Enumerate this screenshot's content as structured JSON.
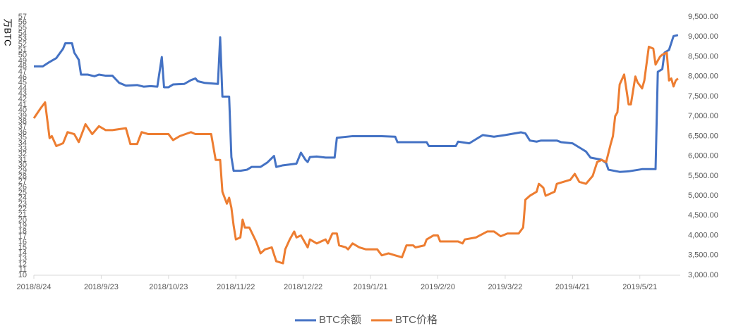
{
  "chart_data": {
    "type": "line",
    "y_label": "万BTC",
    "xlim": [
      "2018/8/24",
      "2019/6/8"
    ],
    "xticks": [
      "2018/8/24",
      "2018/9/23",
      "2018/10/23",
      "2018/11/22",
      "2018/12/22",
      "2019/1/21",
      "2019/2/20",
      "2019/3/22",
      "2019/4/21",
      "2019/5/21"
    ],
    "ylim": [
      10,
      57
    ],
    "yticks": [
      10,
      11,
      12,
      13,
      14,
      15,
      16,
      17,
      18,
      19,
      20,
      21,
      22,
      23,
      24,
      25,
      26,
      27,
      28,
      29,
      30,
      31,
      32,
      33,
      34,
      35,
      36,
      37,
      38,
      39,
      40,
      41,
      42,
      43,
      44,
      45,
      46,
      47,
      48,
      49,
      50,
      51,
      52,
      53,
      54,
      55,
      56,
      57
    ],
    "y2lim": [
      3000,
      9500
    ],
    "y2ticks": [
      {
        "value": 3000,
        "label": "3,000.00"
      },
      {
        "value": 3500,
        "label": "3,500.00"
      },
      {
        "value": 4000,
        "label": "4,000.00"
      },
      {
        "value": 4500,
        "label": "4,500.00"
      },
      {
        "value": 5000,
        "label": "5,000.00"
      },
      {
        "value": 5500,
        "label": "5,500.00"
      },
      {
        "value": 6000,
        "label": "6,000.00"
      },
      {
        "value": 6500,
        "label": "6,500.00"
      },
      {
        "value": 7000,
        "label": "7,000.00"
      },
      {
        "value": 7500,
        "label": "7,500.00"
      },
      {
        "value": 8000,
        "label": "8,000.00"
      },
      {
        "value": 8500,
        "label": "8,500.00"
      },
      {
        "value": 9000,
        "label": "9,000.00"
      },
      {
        "value": 9500,
        "label": "9,500.00"
      }
    ],
    "legend": "bottom",
    "series": [
      {
        "name": "BTC余额",
        "color": "#4472c4",
        "axis": "y",
        "x": [
          "2018/8/24",
          "2018/8/28",
          "2018/8/31",
          "2018/9/3",
          "2018/9/6",
          "2018/9/7",
          "2018/9/10",
          "2018/9/11",
          "2018/9/13",
          "2018/9/14",
          "2018/9/17",
          "2018/9/20",
          "2018/9/22",
          "2018/9/25",
          "2018/9/28",
          "2018/10/1",
          "2018/10/4",
          "2018/10/9",
          "2018/10/12",
          "2018/10/15",
          "2018/10/18",
          "2018/10/20",
          "2018/10/21",
          "2018/10/23",
          "2018/10/25",
          "2018/10/30",
          "2018/11/2",
          "2018/11/4",
          "2018/11/5",
          "2018/11/8",
          "2018/11/11",
          "2018/11/14",
          "2018/11/15",
          "2018/11/16",
          "2018/11/19",
          "2018/11/20",
          "2018/11/21",
          "2018/11/24",
          "2018/11/27",
          "2018/11/29",
          "2018/12/3",
          "2018/12/6",
          "2018/12/9",
          "2018/12/10",
          "2018/12/13",
          "2018/12/19",
          "2018/12/21",
          "2018/12/23",
          "2018/12/24",
          "2018/12/25",
          "2018/12/28",
          "2019/1/1",
          "2019/1/5",
          "2019/1/6",
          "2019/1/13",
          "2019/1/26",
          "2019/2/1",
          "2019/2/2",
          "2019/2/15",
          "2019/2/16",
          "2019/2/28",
          "2019/3/1",
          "2019/3/6",
          "2019/3/12",
          "2019/3/17",
          "2019/3/22",
          "2019/3/29",
          "2019/3/31",
          "2019/4/2",
          "2019/4/5",
          "2019/4/7",
          "2019/4/14",
          "2019/4/16",
          "2019/4/21",
          "2019/4/25",
          "2019/4/27",
          "2019/4/29",
          "2019/5/4",
          "2019/5/6",
          "2019/5/7",
          "2019/5/12",
          "2019/5/16",
          "2019/5/22",
          "2019/5/28",
          "2019/5/29",
          "2019/5/31",
          "2019/6/1",
          "2019/6/3",
          "2019/6/5",
          "2019/6/7"
        ],
        "values": [
          48,
          48,
          48.8,
          49.5,
          51.2,
          52.2,
          52.2,
          50.5,
          49.2,
          46.5,
          46.5,
          46.2,
          46.5,
          46.3,
          46.3,
          45,
          44.5,
          44.6,
          44.3,
          44.4,
          44.3,
          49.7,
          44.2,
          44.2,
          44.7,
          44.8,
          45.5,
          45.8,
          45.3,
          45,
          44.9,
          44.8,
          53.3,
          42.5,
          42.5,
          31.5,
          29,
          29,
          29.2,
          29.7,
          29.7,
          30.5,
          31.7,
          29.7,
          30,
          30.3,
          32.3,
          31,
          30.6,
          31.5,
          31.6,
          31.4,
          31.4,
          35,
          35.3,
          35.3,
          35.2,
          34.2,
          34.2,
          33.5,
          33.5,
          34.3,
          34,
          35.5,
          35.2,
          35.5,
          36,
          35.8,
          34.5,
          34.3,
          34.5,
          34.5,
          34.2,
          34,
          33,
          32.5,
          31.4,
          31,
          30.4,
          29.2,
          28.8,
          28.9,
          29.3,
          29.3,
          47,
          47.5,
          50.5,
          51,
          53.5,
          53.7
        ]
      },
      {
        "name": "BTC价格",
        "color": "#ed7d31",
        "axis": "y2",
        "x": [
          "2018/8/24",
          "2018/8/27",
          "2018/8/29",
          "2018/8/31",
          "2018/9/1",
          "2018/9/3",
          "2018/9/6",
          "2018/9/8",
          "2018/9/11",
          "2018/9/13",
          "2018/9/16",
          "2018/9/19",
          "2018/9/22",
          "2018/9/25",
          "2018/9/28",
          "2018/10/4",
          "2018/10/6",
          "2018/10/9",
          "2018/10/11",
          "2018/10/14",
          "2018/10/17",
          "2018/10/23",
          "2018/10/25",
          "2018/10/28",
          "2018/11/2",
          "2018/11/4",
          "2018/11/11",
          "2018/11/13",
          "2018/11/15",
          "2018/11/16",
          "2018/11/18",
          "2018/11/19",
          "2018/11/20",
          "2018/11/21",
          "2018/11/22",
          "2018/11/24",
          "2018/11/25",
          "2018/11/26",
          "2018/11/28",
          "2018/12/1",
          "2018/12/3",
          "2018/12/5",
          "2018/12/8",
          "2018/12/10",
          "2018/12/13",
          "2018/12/14",
          "2018/12/16",
          "2018/12/18",
          "2018/12/19",
          "2018/12/21",
          "2018/12/24",
          "2018/12/25",
          "2018/12/28",
          "2019/1/1",
          "2019/1/2",
          "2019/1/4",
          "2019/1/6",
          "2019/1/7",
          "2019/1/10",
          "2019/1/11",
          "2019/1/13",
          "2019/1/16",
          "2019/1/19",
          "2019/1/24",
          "2019/1/26",
          "2019/1/29",
          "2019/2/1",
          "2019/2/4",
          "2019/2/6",
          "2019/2/9",
          "2019/2/10",
          "2019/2/14",
          "2019/2/15",
          "2019/2/18",
          "2019/2/20",
          "2019/2/21",
          "2019/2/26",
          "2019/3/1",
          "2019/3/3",
          "2019/3/4",
          "2019/3/9",
          "2019/3/14",
          "2019/3/17",
          "2019/3/20",
          "2019/3/23",
          "2019/3/28",
          "2019/3/30",
          "2019/3/31",
          "2019/4/2",
          "2019/4/5",
          "2019/4/6",
          "2019/4/8",
          "2019/4/9",
          "2019/4/13",
          "2019/4/14",
          "2019/4/17",
          "2019/4/20",
          "2019/4/22",
          "2019/4/24",
          "2019/4/27",
          "2019/4/30",
          "2019/5/2",
          "2019/5/4",
          "2019/5/6",
          "2019/5/8",
          "2019/5/9",
          "2019/5/10",
          "2019/5/11",
          "2019/5/12",
          "2019/5/14",
          "2019/5/16",
          "2019/5/17",
          "2019/5/19",
          "2019/5/20",
          "2019/5/22",
          "2019/5/23",
          "2019/5/25",
          "2019/5/27",
          "2019/5/28",
          "2019/5/30",
          "2019/5/31",
          "2019/6/2",
          "2019/6/3",
          "2019/6/4",
          "2019/6/5",
          "2019/6/6",
          "2019/6/7"
        ],
        "values": [
          6950,
          7200,
          7350,
          6450,
          6500,
          6250,
          6320,
          6600,
          6550,
          6350,
          6800,
          6550,
          6750,
          6650,
          6650,
          6700,
          6300,
          6300,
          6600,
          6550,
          6550,
          6550,
          6400,
          6500,
          6600,
          6550,
          6550,
          5900,
          5900,
          5100,
          4800,
          4950,
          4700,
          4250,
          3900,
          3950,
          4400,
          4200,
          4200,
          3850,
          3550,
          3650,
          3700,
          3350,
          3300,
          3650,
          3900,
          4100,
          3950,
          4000,
          3700,
          3900,
          3800,
          3900,
          3800,
          4050,
          4050,
          3750,
          3700,
          3650,
          3800,
          3700,
          3650,
          3650,
          3500,
          3550,
          3500,
          3450,
          3750,
          3750,
          3700,
          3750,
          3900,
          4000,
          4000,
          3850,
          3850,
          3850,
          3800,
          3900,
          3950,
          4100,
          4100,
          3980,
          4050,
          4050,
          4200,
          4900,
          5000,
          5100,
          5300,
          5200,
          5000,
          5100,
          5300,
          5350,
          5400,
          5550,
          5350,
          5300,
          5500,
          5850,
          5900,
          5850,
          6300,
          6500,
          7000,
          7100,
          7800,
          8050,
          7300,
          7300,
          8000,
          7850,
          7700,
          7900,
          8750,
          8700,
          8300,
          8500,
          8550,
          8600,
          7900,
          7950,
          7750,
          7900,
          7950
        ]
      }
    ]
  }
}
